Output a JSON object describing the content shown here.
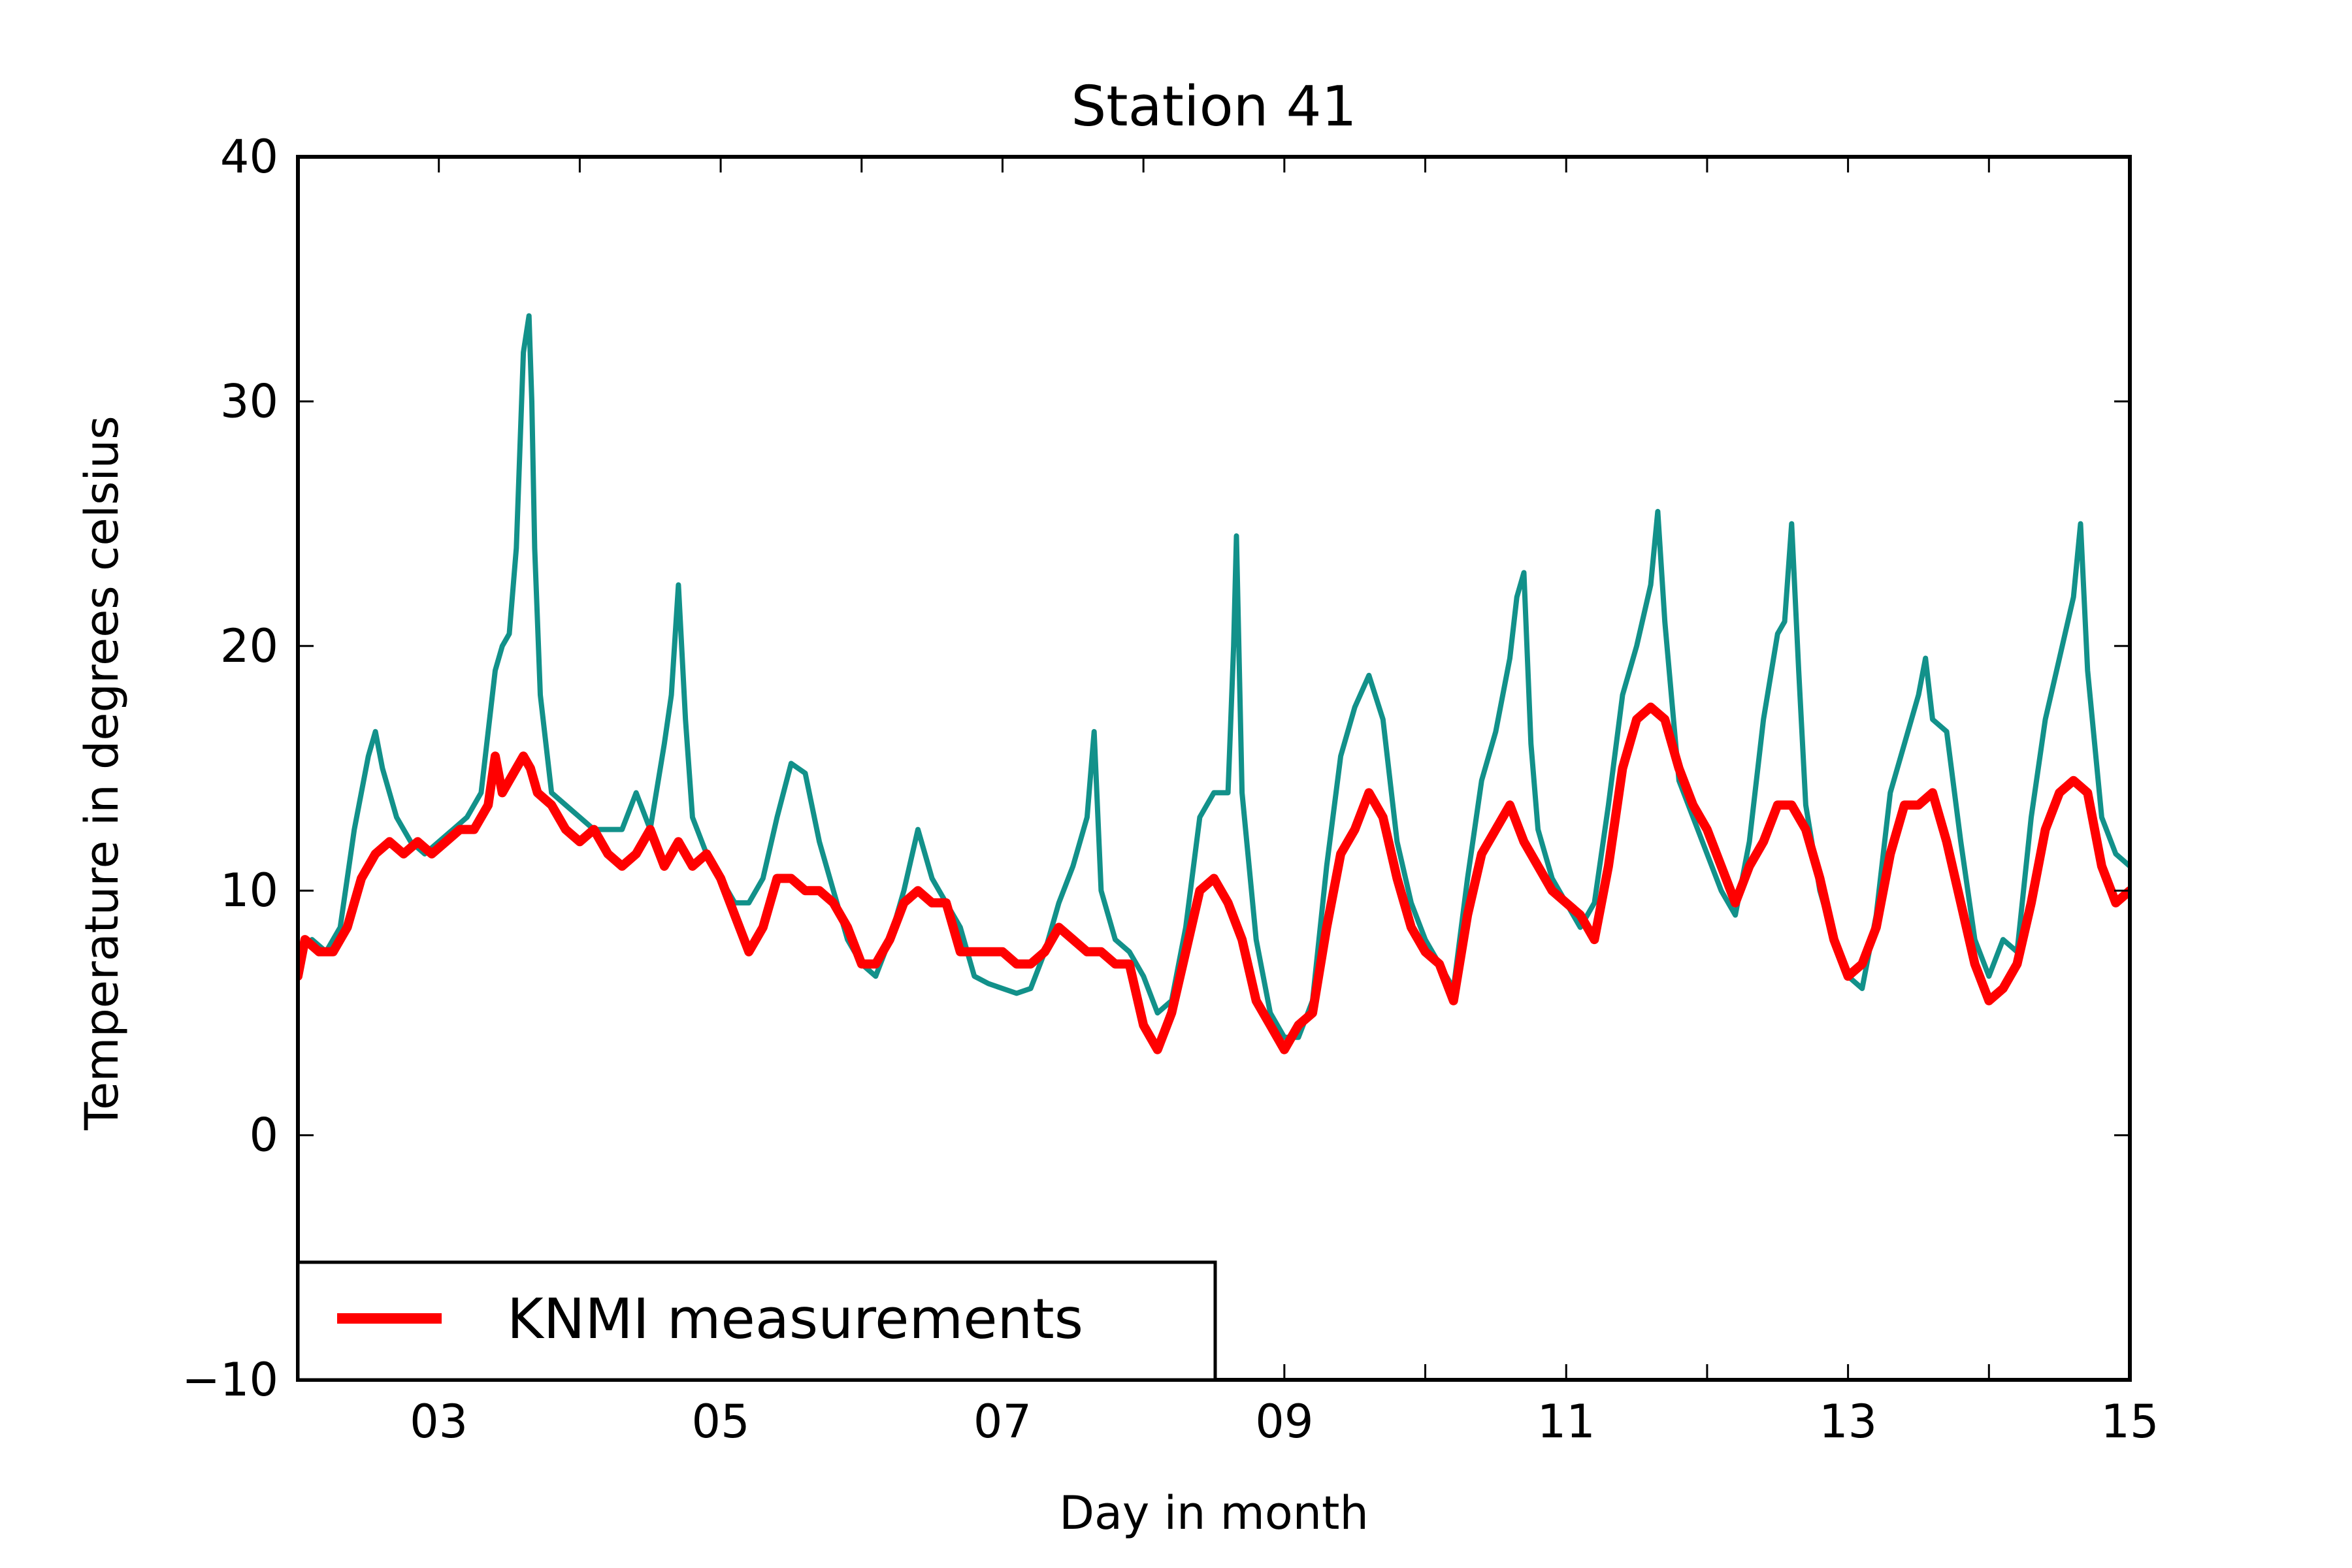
{
  "chart_data": {
    "type": "line",
    "title": "Station 41",
    "xlabel": "Day in month",
    "ylabel": "Temperature in degrees celsius",
    "xlim": [
      2,
      15
    ],
    "ylim": [
      -10,
      40
    ],
    "x_ticks": [
      3,
      5,
      7,
      9,
      11,
      13,
      15
    ],
    "x_tick_labels": [
      "03",
      "05",
      "07",
      "09",
      "11",
      "13",
      "15"
    ],
    "x_minor_ticks": [
      4,
      6,
      8,
      10,
      12,
      14
    ],
    "y_ticks": [
      -10,
      0,
      10,
      20,
      30,
      40
    ],
    "y_tick_labels": [
      "−10",
      "0",
      "10",
      "20",
      "30",
      "40"
    ],
    "grid": false,
    "legend": {
      "placement": "lower-left",
      "entries": [
        "KNMI measurements"
      ]
    },
    "series": [
      {
        "color": "#12918a",
        "x": [
          2.0,
          2.1,
          2.2,
          2.3,
          2.4,
          2.5,
          2.55,
          2.6,
          2.7,
          2.8,
          2.9,
          3.0,
          3.1,
          3.2,
          3.3,
          3.4,
          3.45,
          3.5,
          3.55,
          3.6,
          3.64,
          3.66,
          3.68,
          3.72,
          3.8,
          3.9,
          4.0,
          4.1,
          4.2,
          4.3,
          4.4,
          4.5,
          4.6,
          4.65,
          4.7,
          4.75,
          4.8,
          4.9,
          5.0,
          5.1,
          5.2,
          5.3,
          5.4,
          5.5,
          5.6,
          5.7,
          5.8,
          5.9,
          6.0,
          6.1,
          6.2,
          6.3,
          6.4,
          6.5,
          6.6,
          6.7,
          6.8,
          6.9,
          7.0,
          7.1,
          7.2,
          7.3,
          7.4,
          7.5,
          7.6,
          7.65,
          7.7,
          7.8,
          7.9,
          8.0,
          8.1,
          8.2,
          8.3,
          8.4,
          8.5,
          8.6,
          8.64,
          8.66,
          8.7,
          8.8,
          8.9,
          9.0,
          9.1,
          9.2,
          9.3,
          9.4,
          9.5,
          9.6,
          9.7,
          9.8,
          9.9,
          10.0,
          10.1,
          10.2,
          10.3,
          10.4,
          10.5,
          10.6,
          10.65,
          10.7,
          10.75,
          10.8,
          10.9,
          11.0,
          11.1,
          11.2,
          11.3,
          11.4,
          11.5,
          11.6,
          11.65,
          11.7,
          11.8,
          11.9,
          12.0,
          12.1,
          12.2,
          12.3,
          12.4,
          12.5,
          12.55,
          12.6,
          12.65,
          12.7,
          12.8,
          12.9,
          13.0,
          13.1,
          13.2,
          13.3,
          13.4,
          13.5,
          13.55,
          13.6,
          13.7,
          13.8,
          13.9,
          14.0,
          14.1,
          14.2,
          14.3,
          14.4,
          14.5,
          14.6,
          14.65,
          14.7,
          14.8,
          14.9,
          15.0
        ],
        "y": [
          7.5,
          8.0,
          7.5,
          8.5,
          12.5,
          15.5,
          16.5,
          15.0,
          13.0,
          12.0,
          11.5,
          12.0,
          12.5,
          13.0,
          14.0,
          19.0,
          20.0,
          20.5,
          24.0,
          32.0,
          33.5,
          30.0,
          24.0,
          18.0,
          14.0,
          13.5,
          13.0,
          12.5,
          12.5,
          12.5,
          14.0,
          12.5,
          16.0,
          18.0,
          22.5,
          17.0,
          13.0,
          11.5,
          10.5,
          9.5,
          9.5,
          10.5,
          13.0,
          15.2,
          14.8,
          12.0,
          10.0,
          8.0,
          7.0,
          6.5,
          8.0,
          10.0,
          12.5,
          10.5,
          9.5,
          8.5,
          6.5,
          6.2,
          6.0,
          5.8,
          6.0,
          7.5,
          9.5,
          11.0,
          13.0,
          16.5,
          10.0,
          8.0,
          7.5,
          6.5,
          5.0,
          5.5,
          8.5,
          13.0,
          14.0,
          14.0,
          20.0,
          24.5,
          14.0,
          8.0,
          5.0,
          4.0,
          4.0,
          5.5,
          11.0,
          15.5,
          17.5,
          18.8,
          17.0,
          12.0,
          9.5,
          8.0,
          7.0,
          6.0,
          10.5,
          14.5,
          16.5,
          19.5,
          22.0,
          23.0,
          16.0,
          12.5,
          10.5,
          9.5,
          8.5,
          9.5,
          13.5,
          18.0,
          20.0,
          22.5,
          25.5,
          21.0,
          14.5,
          13.0,
          11.5,
          10.0,
          9.0,
          12.0,
          17.0,
          20.5,
          21.0,
          25.0,
          19.0,
          13.5,
          10.0,
          8.0,
          6.5,
          6.0,
          9.0,
          14.0,
          16.0,
          18.0,
          19.5,
          17.0,
          16.5,
          12.0,
          8.0,
          6.5,
          8.0,
          7.5,
          13.0,
          17.0,
          19.5,
          22.0,
          25.0,
          19.0,
          13.0,
          11.5,
          11.0
        ]
      },
      {
        "name": "KNMI measurements",
        "color": "#ff0000",
        "x": [
          2.0,
          2.05,
          2.15,
          2.25,
          2.35,
          2.45,
          2.55,
          2.65,
          2.75,
          2.85,
          2.95,
          3.05,
          3.15,
          3.25,
          3.35,
          3.4,
          3.45,
          3.5,
          3.6,
          3.65,
          3.7,
          3.8,
          3.9,
          4.0,
          4.1,
          4.2,
          4.3,
          4.4,
          4.5,
          4.6,
          4.7,
          4.8,
          4.9,
          5.0,
          5.1,
          5.2,
          5.3,
          5.4,
          5.5,
          5.6,
          5.7,
          5.8,
          5.9,
          6.0,
          6.1,
          6.2,
          6.3,
          6.4,
          6.5,
          6.6,
          6.7,
          6.8,
          6.9,
          7.0,
          7.1,
          7.2,
          7.3,
          7.4,
          7.5,
          7.6,
          7.7,
          7.8,
          7.9,
          8.0,
          8.1,
          8.2,
          8.3,
          8.4,
          8.5,
          8.6,
          8.7,
          8.8,
          8.9,
          9.0,
          9.1,
          9.2,
          9.3,
          9.4,
          9.5,
          9.6,
          9.7,
          9.8,
          9.9,
          10.0,
          10.1,
          10.2,
          10.3,
          10.4,
          10.5,
          10.6,
          10.7,
          10.8,
          10.9,
          11.0,
          11.1,
          11.2,
          11.3,
          11.4,
          11.5,
          11.6,
          11.7,
          11.8,
          11.9,
          12.0,
          12.1,
          12.2,
          12.3,
          12.4,
          12.5,
          12.6,
          12.7,
          12.8,
          12.9,
          13.0,
          13.1,
          13.2,
          13.3,
          13.4,
          13.5,
          13.6,
          13.7,
          13.8,
          13.9,
          14.0,
          14.1,
          14.2,
          14.3,
          14.4,
          14.5,
          14.6,
          14.7,
          14.8,
          14.9,
          15.0
        ],
        "y": [
          6.5,
          8.0,
          7.5,
          7.5,
          8.5,
          10.5,
          11.5,
          12.0,
          11.5,
          12.0,
          11.5,
          12.0,
          12.5,
          12.5,
          13.5,
          15.5,
          14.0,
          14.5,
          15.5,
          15.0,
          14.0,
          13.5,
          12.5,
          12.0,
          12.5,
          11.5,
          11.0,
          11.5,
          12.5,
          11.0,
          12.0,
          11.0,
          11.5,
          10.5,
          9.0,
          7.5,
          8.5,
          10.5,
          10.5,
          10.0,
          10.0,
          9.5,
          8.5,
          7.0,
          7.0,
          8.0,
          9.5,
          10.0,
          9.5,
          9.5,
          7.5,
          7.5,
          7.5,
          7.5,
          7.0,
          7.0,
          7.5,
          8.5,
          8.0,
          7.5,
          7.5,
          7.0,
          7.0,
          4.5,
          3.5,
          5.0,
          7.5,
          10.0,
          10.5,
          9.5,
          8.0,
          5.5,
          4.5,
          3.5,
          4.5,
          5.0,
          8.5,
          11.5,
          12.5,
          14.0,
          13.0,
          10.5,
          8.5,
          7.5,
          7.0,
          5.5,
          9.0,
          11.5,
          12.5,
          13.5,
          12.0,
          11.0,
          10.0,
          9.5,
          9.0,
          8.0,
          11.0,
          15.0,
          17.0,
          17.5,
          17.0,
          15.0,
          13.5,
          12.5,
          11.0,
          9.5,
          11.0,
          12.0,
          13.5,
          13.5,
          12.5,
          10.5,
          8.0,
          6.5,
          7.0,
          8.5,
          11.5,
          13.5,
          13.5,
          14.0,
          12.0,
          9.5,
          7.0,
          5.5,
          6.0,
          7.0,
          9.5,
          12.5,
          14.0,
          14.5,
          14.0,
          11.0,
          9.5,
          10.0
        ]
      }
    ]
  }
}
